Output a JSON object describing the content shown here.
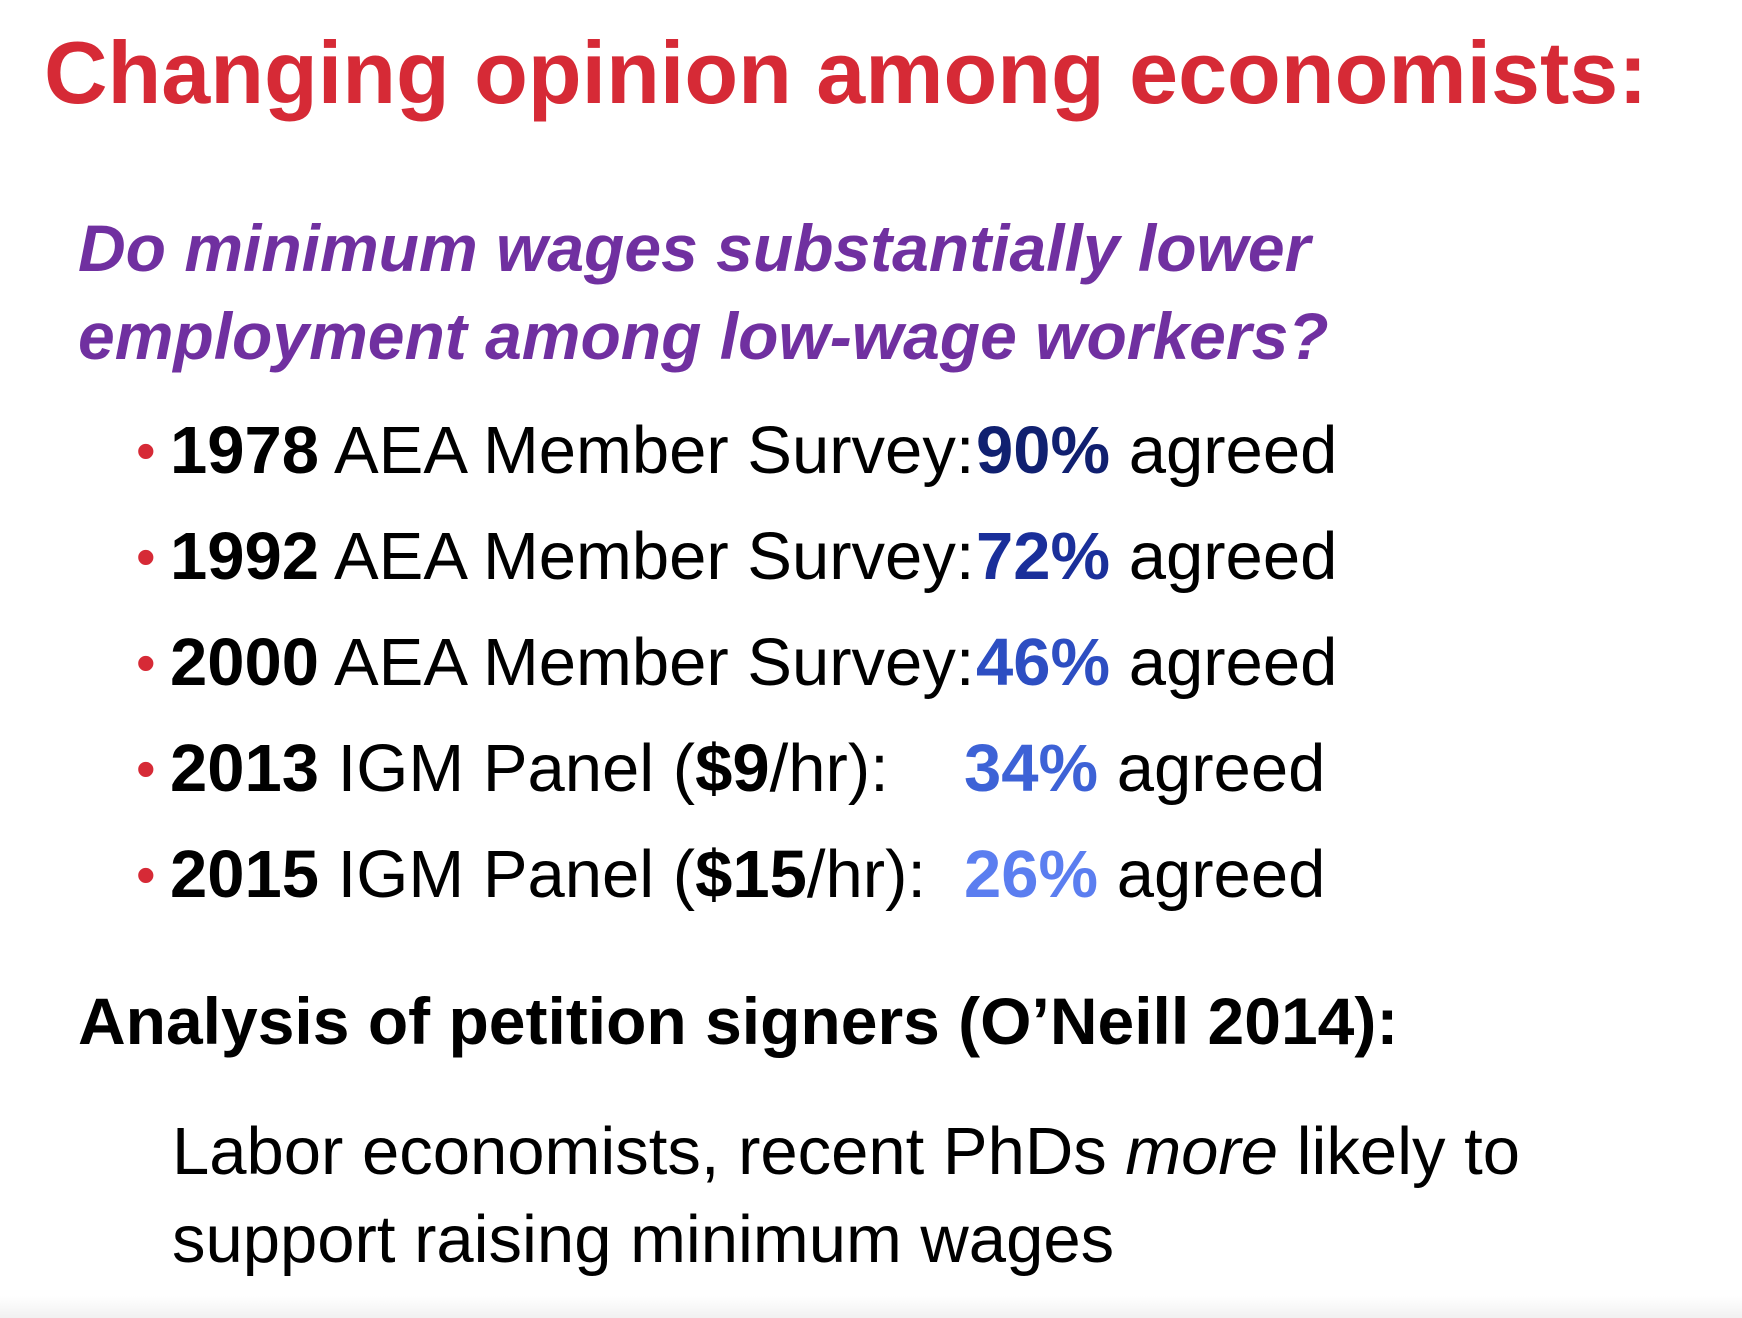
{
  "slide": {
    "title": "Changing opinion among economists:",
    "question": "Do minimum wages substantially lower employment among low-wage workers?",
    "bullet_char": "•",
    "surveys": [
      {
        "year": "1978",
        "label_before": " AEA Member Survey:",
        "bold_detail": "",
        "label_after": "",
        "percent": "90%",
        "agreed_text": " agreed",
        "percent_color": "#102070"
      },
      {
        "year": "1992",
        "label_before": " AEA Member Survey:",
        "bold_detail": "",
        "label_after": "",
        "percent": "72%",
        "agreed_text": " agreed",
        "percent_color": "#1a2f9a"
      },
      {
        "year": "2000",
        "label_before": " AEA Member Survey:",
        "bold_detail": "",
        "label_after": "",
        "percent": "46%",
        "agreed_text": " agreed",
        "percent_color": "#2d4ec2"
      },
      {
        "year": "2013",
        "label_before": " IGM Panel (",
        "bold_detail": "$9",
        "label_after": "/hr):",
        "percent": "34%",
        "agreed_text": " agreed",
        "percent_color": "#3d62d6"
      },
      {
        "year": "2015",
        "label_before": " IGM Panel (",
        "bold_detail": "$15",
        "label_after": "/hr):",
        "percent": "26%",
        "agreed_text": " agreed",
        "percent_color": "#5b7ef0"
      }
    ],
    "closing_heading": "Analysis of petition signers (O’Neill 2014):",
    "closing_text": {
      "before": "Labor economists, recent PhDs ",
      "emphasis": "more",
      "after": " likely to support raising minimum wages"
    },
    "colors": {
      "title": "#d62a36",
      "question": "#7030a0",
      "bullet": "#d62a36",
      "text": "#000000"
    }
  }
}
